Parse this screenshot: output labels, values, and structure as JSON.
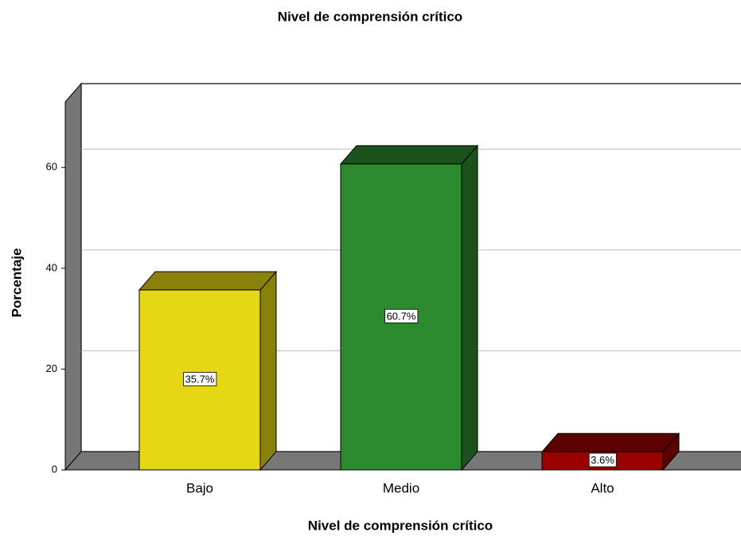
{
  "chart_data": {
    "type": "bar3d",
    "title": "Nivel de comprensión crítico",
    "x_label": "Nivel de comprensión crítico",
    "y_label": "Porcentaje",
    "categories": [
      "Bajo",
      "Medio",
      "Alto"
    ],
    "values": [
      35.7,
      60.7,
      3.6
    ],
    "value_labels": [
      "35.7%",
      "60.7%",
      "3.6%"
    ],
    "colors": [
      "#e5d813",
      "#2a8a2d",
      "#990000"
    ],
    "ylim": [
      0,
      73
    ],
    "yticks": [
      0,
      20,
      40,
      60
    ],
    "grid": true
  }
}
